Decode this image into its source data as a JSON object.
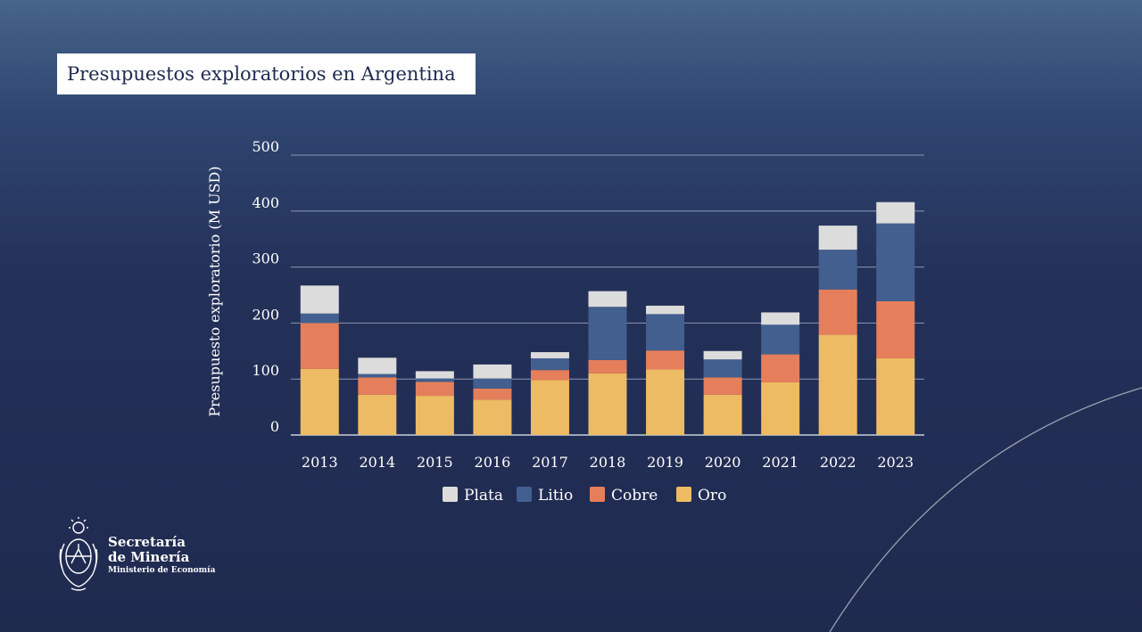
{
  "slide": {
    "title": "Presupuestos exploratorios en Argentina"
  },
  "org": {
    "line1": "Secretaría",
    "line2": "de Minería",
    "line3": "Ministerio de Economía",
    "emblem_icon": "argentina-coat-of-arms-icon"
  },
  "colors": {
    "plata": "#dcdcdc",
    "litio": "#435f8f",
    "cobre": "#e57f5b",
    "oro": "#edbb63",
    "grid": "#8d97b3",
    "text": "#ffffff"
  },
  "chart_data": {
    "type": "bar",
    "stacked": true,
    "title": "",
    "xlabel": "",
    "ylabel": "Presupuesto exploratorio (M USD)",
    "ylim": [
      0,
      500
    ],
    "yticks": [
      "0",
      "100",
      "200",
      "300",
      "400",
      "500"
    ],
    "categories": [
      "2013",
      "2014",
      "2015",
      "2016",
      "2017",
      "2018",
      "2019",
      "2020",
      "2021",
      "2022",
      "2023"
    ],
    "series": [
      {
        "name": "Oro",
        "key": "oro",
        "values": [
          118,
          72,
          70,
          63,
          98,
          110,
          117,
          72,
          94,
          179,
          137
        ]
      },
      {
        "name": "Cobre",
        "key": "cobre",
        "values": [
          82,
          31,
          25,
          20,
          18,
          24,
          34,
          31,
          50,
          81,
          102
        ]
      },
      {
        "name": "Litio",
        "key": "litio",
        "values": [
          17,
          6,
          6,
          18,
          21,
          95,
          65,
          32,
          53,
          71,
          139
        ]
      },
      {
        "name": "Plata",
        "key": "plata",
        "values": [
          50,
          29,
          13,
          25,
          11,
          28,
          15,
          15,
          22,
          43,
          38
        ]
      }
    ],
    "legend": [
      "Plata",
      "Litio",
      "Cobre",
      "Oro"
    ],
    "legend_position": "bottom"
  }
}
